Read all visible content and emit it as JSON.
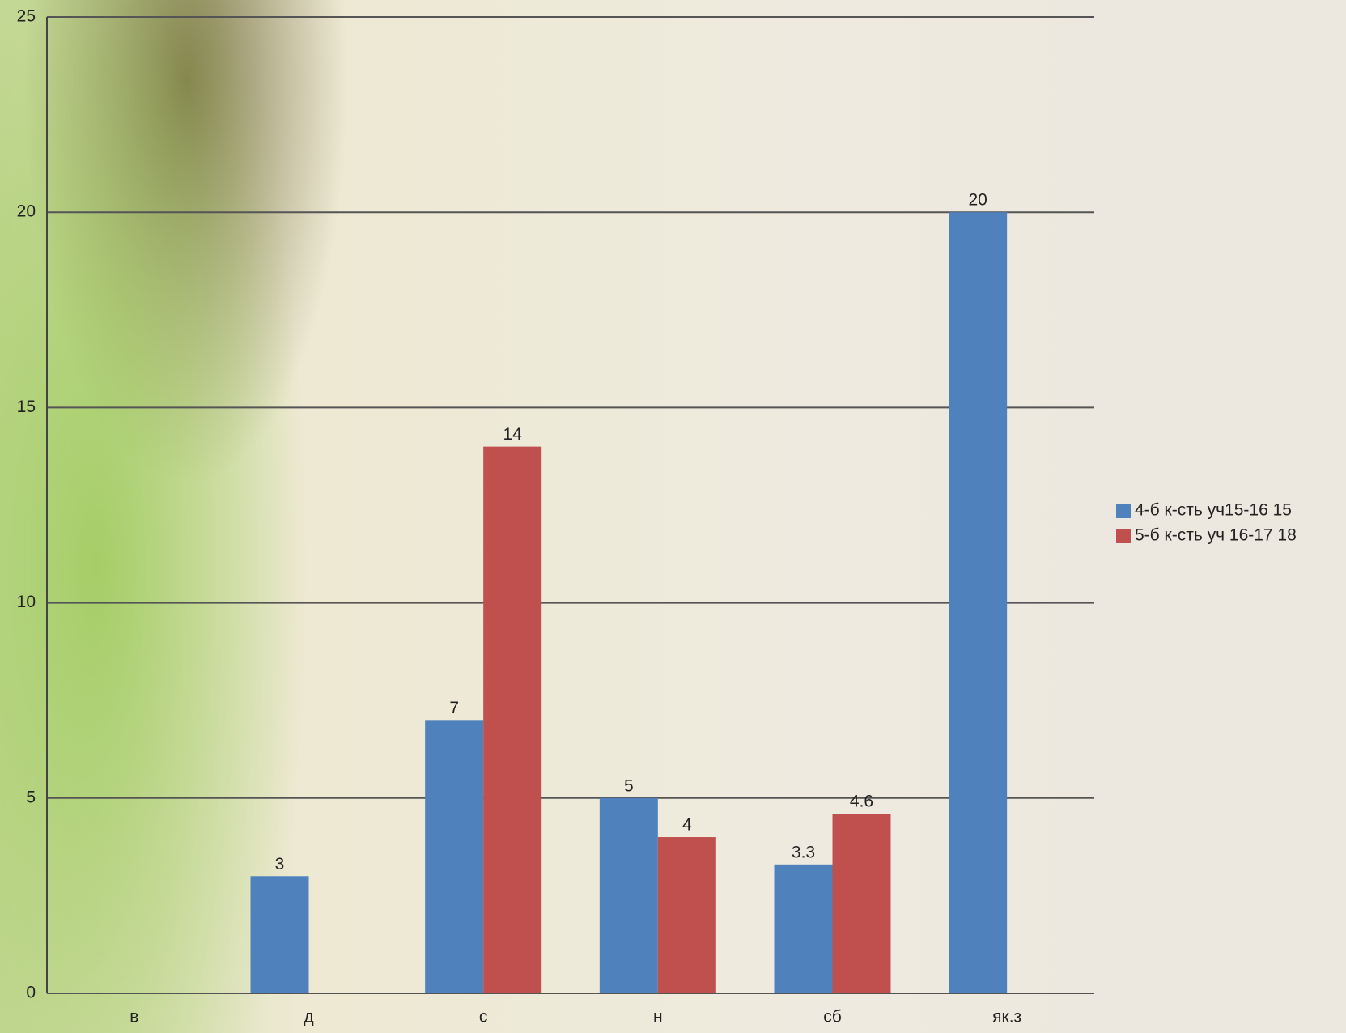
{
  "chart_data": {
    "type": "bar",
    "categories": [
      "в",
      "д",
      "с",
      "н",
      "сб",
      "як.з"
    ],
    "series": [
      {
        "name": "4-б к-сть уч15-16 15",
        "color": "#4f81bd",
        "values": [
          null,
          3,
          7,
          5,
          3.3,
          20
        ]
      },
      {
        "name": "5-б к-сть уч 16-17 18",
        "color": "#c0504d",
        "values": [
          null,
          null,
          14,
          4,
          4.6,
          null
        ]
      }
    ],
    "ylim": [
      0,
      25
    ],
    "yticks": [
      0,
      5,
      10,
      15,
      20,
      25
    ],
    "grid": true,
    "legend": "right"
  }
}
